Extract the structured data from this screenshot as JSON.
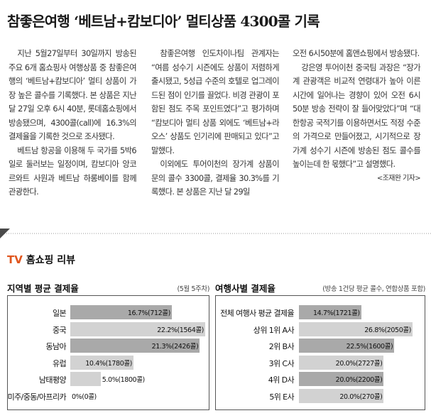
{
  "headline": "참좋은여행 ‘베트남+캄보디아’ 멀티상품 4300콜 기록",
  "article": {
    "col1": [
      "지난 5월27일부터 30일까지 방송된 주요 6개 홈쇼핑사 여행상품 중 참좋은여행의 ‘베트남+캄보디아’ 멀티 상품이 가장 높은 콜수를 기록했다. 본 상품은 지난 달 27일 오후 6시 40분, 롯데홈쇼핑에서 방송됐으며, 4300콜(call)에 16.3%의 결제율을 기록한 것으로 조사됐다.",
      "베트남 항공을 이용해 두 국가를 5박6일로 둘러보는 일정이며, 캄보디아 앙코르와트 사원과 베트남 하롱베이를 함께 관광한다."
    ],
    "col2": [
      "참좋은여행 인도차이나팀 관계자는 “여름 성수기 시즌에도 상품이 저렴하게 출시됐고, 5성급 수준의 호텔로 업그레이드된 점이 인기를 끌었다. 비경 관광이 포함된 점도 주목 포인트였다”고 평가하며 “캄보디아 멀티 상품 외에도 ‘베트남+라오스’ 상품도 인기리에 판매되고 있다”고 말했다.",
      "이외에도 투어이천의 장가계 상품이 문의 콜수 3300콜, 결제율 30.3%를 기록했다. 본 상품은 지난 달 29일"
    ],
    "col3": [
      "오전 6시50분에 홈앤쇼핑에서 방송됐다.",
      "강은영 투어이천 중국팀 과장은 “장가계 관광객은 비교적 연령대가 높아 이른 시간에 일어나는 경향이 있어 오전 6시50분 방송 전략이 잘 들어맞았다”며 “대한항공 국적기를 이용하면서도 적정 수준의 가격으로 만들어졌고, 시기적으로 장가계 성수기 시즌에 방송된 점도 콜수를 높이는데 한 몫했다”고 설명했다."
    ],
    "byline": "<조재완 기자>"
  },
  "section": {
    "tv": "TV",
    "title": "홈쇼핑 리뷰"
  },
  "colors": {
    "accent": "#e0561e",
    "bar_light": "#d2d2d2",
    "bar_dark": "#a9a9a9"
  },
  "chart_data": [
    {
      "type": "bar",
      "title": "지역별 평균 결제율",
      "note": "(5월 5주차)",
      "categories": [
        "일본",
        "중국",
        "동남아",
        "유럽",
        "남태평양",
        "미주/중동/아프리카"
      ],
      "values": [
        16.7,
        22.2,
        21.3,
        10.4,
        5.0,
        0
      ],
      "labels": [
        "16.7%(712콜)",
        "22.2%(1564콜)",
        "21.3%(2426콜)",
        "10.4%(1780콜)",
        "5.0%(1800콜)",
        "0%(0콜)"
      ],
      "highlight": [
        true,
        false,
        true,
        false,
        false,
        false
      ]
    },
    {
      "type": "bar",
      "title": "여행사별 결제율",
      "note": "(방송 1건당 평균 콜수, 연합상품 포함)",
      "categories": [
        "전체 여행사 평균 결제율",
        "상위 1위 A사",
        "2위 B사",
        "3위 C사",
        "4위 D사",
        "5위 E사"
      ],
      "values": [
        14.7,
        26.8,
        22.5,
        20.0,
        20.0,
        20.0
      ],
      "labels": [
        "14.7%(1721콜)",
        "26.8%(2050콜)",
        "22.5%(1600콜)",
        "20.0%(2727콜)",
        "20.0%(2200콜)",
        "20.0%(270콜)"
      ],
      "highlight": [
        true,
        false,
        true,
        false,
        true,
        false
      ]
    }
  ]
}
